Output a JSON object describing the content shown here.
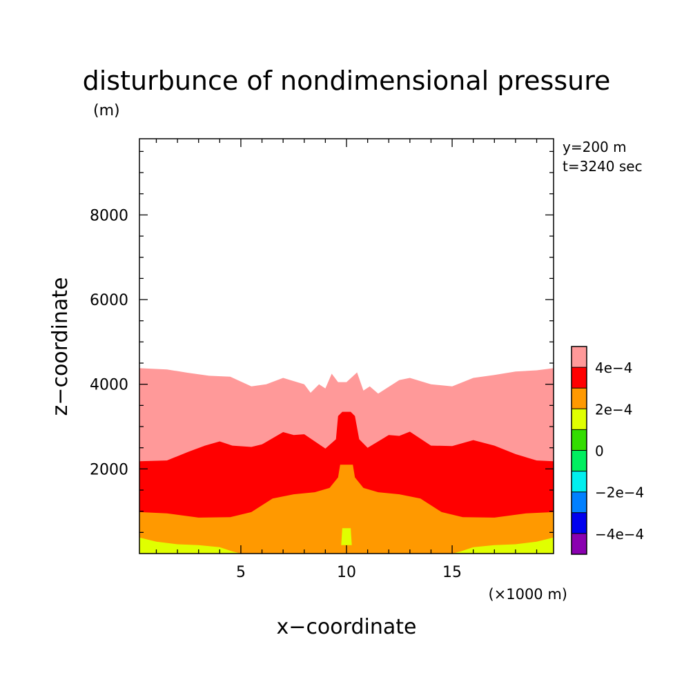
{
  "chart_data": {
    "type": "contour",
    "title": "disturbunce of nondimensional pressure",
    "ylabel_unit": "(m)",
    "xlabel": "x−coordinate",
    "ylabel": "z−coordinate",
    "xunit": "(×1000 m)",
    "annotations": [
      "y=200 m",
      "t=3240 sec"
    ],
    "xlim": [
      0.2,
      19.8
    ],
    "ylim": [
      0,
      9800
    ],
    "xticks": [
      5,
      10,
      15
    ],
    "yticks": [
      2000,
      4000,
      6000,
      8000
    ],
    "xtick_labels": [
      "5",
      "10",
      "15"
    ],
    "ytick_labels": [
      "2000",
      "4000",
      "6000",
      "8000"
    ],
    "levels": [
      -0.0005,
      -0.0004,
      -0.0003,
      -0.0002,
      -0.0001,
      0,
      0.0001,
      0.0002,
      0.0003,
      0.0004,
      0.0005
    ],
    "colorbar": {
      "colors": [
        "#8a00b0",
        "#0000ee",
        "#0080ff",
        "#00eeee",
        "#00ee60",
        "#33dd00",
        "#e0ff00",
        "#ff9900",
        "#ff0000",
        "#ff9999"
      ],
      "labels": [
        "−4e−4",
        "−2e−4",
        "0",
        "2e−4",
        "4e−4"
      ],
      "label_values": [
        -0.0004,
        -0.0002,
        0,
        0.0002,
        0.0004
      ]
    },
    "regions": [
      {
        "name": "pink-region",
        "color": "#ff9999",
        "range": [
          0.0004,
          0.0005
        ],
        "top": [
          [
            0.2,
            4380
          ],
          [
            1.5,
            4350
          ],
          [
            2.5,
            4270
          ],
          [
            3.5,
            4200
          ],
          [
            4.5,
            4180
          ],
          [
            5.5,
            3950
          ],
          [
            6.2,
            4000
          ],
          [
            7.0,
            4150
          ],
          [
            8.0,
            4000
          ],
          [
            8.3,
            3800
          ],
          [
            8.7,
            4000
          ],
          [
            9.0,
            3900
          ],
          [
            9.3,
            4250
          ],
          [
            9.6,
            4050
          ],
          [
            10.0,
            4050
          ],
          [
            10.5,
            4280
          ],
          [
            10.8,
            3850
          ],
          [
            11.1,
            3950
          ],
          [
            11.5,
            3780
          ],
          [
            12.5,
            4100
          ],
          [
            13.0,
            4150
          ],
          [
            14.0,
            4000
          ],
          [
            15.0,
            3950
          ],
          [
            16.0,
            4150
          ],
          [
            17.0,
            4220
          ],
          [
            18.0,
            4300
          ],
          [
            19.0,
            4330
          ],
          [
            19.8,
            4380
          ]
        ]
      },
      {
        "name": "red-region",
        "color": "#ff0000",
        "range": [
          0.0003,
          0.0004
        ],
        "top": [
          [
            0.2,
            2180
          ],
          [
            1.5,
            2200
          ],
          [
            2.5,
            2400
          ],
          [
            3.3,
            2550
          ],
          [
            4.0,
            2650
          ],
          [
            4.6,
            2550
          ],
          [
            5.5,
            2520
          ],
          [
            6.0,
            2580
          ],
          [
            7.0,
            2870
          ],
          [
            7.5,
            2800
          ],
          [
            8.0,
            2820
          ],
          [
            9.0,
            2480
          ],
          [
            9.5,
            2700
          ],
          [
            9.6,
            3250
          ],
          [
            9.8,
            3350
          ],
          [
            10.2,
            3350
          ],
          [
            10.4,
            3250
          ],
          [
            10.6,
            2700
          ],
          [
            11.0,
            2500
          ],
          [
            12.0,
            2800
          ],
          [
            12.5,
            2780
          ],
          [
            13.0,
            2880
          ],
          [
            14.0,
            2550
          ],
          [
            15.0,
            2540
          ],
          [
            16.0,
            2680
          ],
          [
            17.0,
            2550
          ],
          [
            18.0,
            2350
          ],
          [
            19.0,
            2200
          ],
          [
            19.8,
            2180
          ]
        ]
      },
      {
        "name": "orange-region",
        "color": "#ff9900",
        "range": [
          0.0002,
          0.0003
        ],
        "top": [
          [
            0.2,
            980
          ],
          [
            1.5,
            950
          ],
          [
            3.0,
            850
          ],
          [
            4.5,
            860
          ],
          [
            5.5,
            980
          ],
          [
            6.5,
            1300
          ],
          [
            7.5,
            1400
          ],
          [
            8.5,
            1450
          ],
          [
            9.2,
            1550
          ],
          [
            9.6,
            1800
          ],
          [
            9.7,
            2100
          ],
          [
            10.3,
            2100
          ],
          [
            10.4,
            1800
          ],
          [
            10.8,
            1550
          ],
          [
            11.5,
            1450
          ],
          [
            12.5,
            1400
          ],
          [
            13.5,
            1300
          ],
          [
            14.5,
            980
          ],
          [
            15.5,
            860
          ],
          [
            17.0,
            850
          ],
          [
            18.5,
            950
          ],
          [
            19.8,
            980
          ]
        ]
      },
      {
        "name": "yellow-region",
        "color": "#e0ff00",
        "range": [
          0.0001,
          0.0002
        ],
        "top": [
          [
            0.2,
            380
          ],
          [
            1.0,
            280
          ],
          [
            2.0,
            220
          ],
          [
            3.0,
            200
          ],
          [
            4.0,
            150
          ],
          [
            4.6,
            50
          ],
          [
            5.0,
            0
          ],
          [
            15.0,
            0
          ],
          [
            15.4,
            50
          ],
          [
            16.0,
            150
          ],
          [
            17.0,
            200
          ],
          [
            18.0,
            220
          ],
          [
            19.0,
            280
          ],
          [
            19.8,
            380
          ]
        ]
      }
    ],
    "islands": [
      {
        "name": "yellow-island",
        "color": "#e0ff00",
        "range": [
          0.0001,
          0.0002
        ],
        "polygon": [
          [
            9.75,
            200
          ],
          [
            9.8,
            600
          ],
          [
            10.2,
            600
          ],
          [
            10.25,
            200
          ]
        ]
      }
    ]
  }
}
